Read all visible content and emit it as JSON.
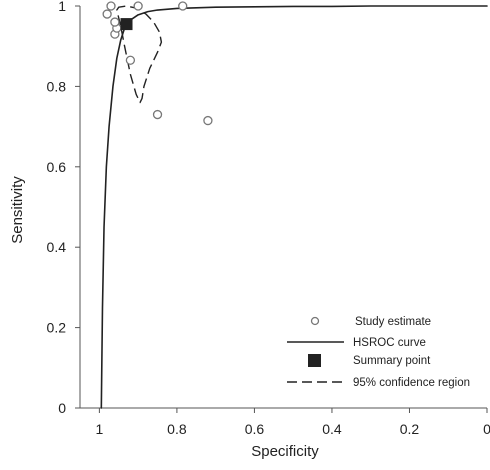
{
  "chart_data": {
    "type": "scatter",
    "title": "",
    "xlabel": "Specificity",
    "ylabel": "Sensitivity",
    "xlim": [
      1.05,
      0
    ],
    "ylim": [
      0,
      1
    ],
    "x_reversed": true,
    "x_ticks": [
      1,
      0.8,
      0.6,
      0.4,
      0.2,
      0
    ],
    "x_tick_labels": [
      "1",
      "0.8",
      "0.6",
      "0.4",
      "0.2",
      "0"
    ],
    "y_ticks": [
      0,
      0.2,
      0.4,
      0.6,
      0.8,
      1
    ],
    "y_tick_labels": [
      "0",
      "0.2",
      "0.4",
      "0.6",
      "0.8",
      "1"
    ],
    "grid": false,
    "legend_position": "bottom-right",
    "legend": [
      {
        "label": "Study estimate",
        "marker": "open-circle"
      },
      {
        "label": "HSROC curve",
        "marker": "solid-line"
      },
      {
        "label": "Summary point",
        "marker": "filled-square"
      },
      {
        "label": "95% confidence region",
        "marker": "dashed-line"
      }
    ],
    "study_estimates": {
      "specificity": [
        0.98,
        0.97,
        0.96,
        0.955,
        0.96,
        0.9,
        0.785,
        0.92,
        0.85,
        0.72
      ],
      "sensitivity": [
        0.98,
        1.0,
        0.93,
        0.945,
        0.96,
        1.0,
        1.0,
        0.865,
        0.73,
        0.715
      ]
    },
    "summary_point": {
      "specificity": 0.93,
      "sensitivity": 0.955
    },
    "hsroc_curve": {
      "specificity": [
        0.995,
        0.992,
        0.988,
        0.982,
        0.975,
        0.965,
        0.955,
        0.945,
        0.935,
        0.92,
        0.9,
        0.875,
        0.85,
        0.8,
        0.7,
        0.6,
        0.5,
        0.4,
        0.3,
        0.2,
        0.1,
        0.0
      ],
      "sensitivity": [
        0.0,
        0.25,
        0.45,
        0.6,
        0.7,
        0.8,
        0.87,
        0.915,
        0.945,
        0.965,
        0.978,
        0.986,
        0.99,
        0.994,
        0.997,
        0.998,
        0.999,
        0.999,
        1.0,
        1.0,
        1.0,
        1.0
      ]
    },
    "confidence_region": {
      "specificity": [
        0.955,
        0.95,
        0.93,
        0.905,
        0.88,
        0.86,
        0.845,
        0.84,
        0.85,
        0.87,
        0.885,
        0.89,
        0.895,
        0.905,
        0.92,
        0.935,
        0.945,
        0.955
      ],
      "sensitivity": [
        0.99,
        0.997,
        1.0,
        0.995,
        0.98,
        0.96,
        0.935,
        0.91,
        0.885,
        0.845,
        0.8,
        0.77,
        0.76,
        0.78,
        0.83,
        0.9,
        0.95,
        0.99
      ]
    }
  },
  "colors": {
    "ink": "#222222",
    "axis": "#555555",
    "study_marker_stroke": "#777777",
    "background": "#ffffff"
  }
}
